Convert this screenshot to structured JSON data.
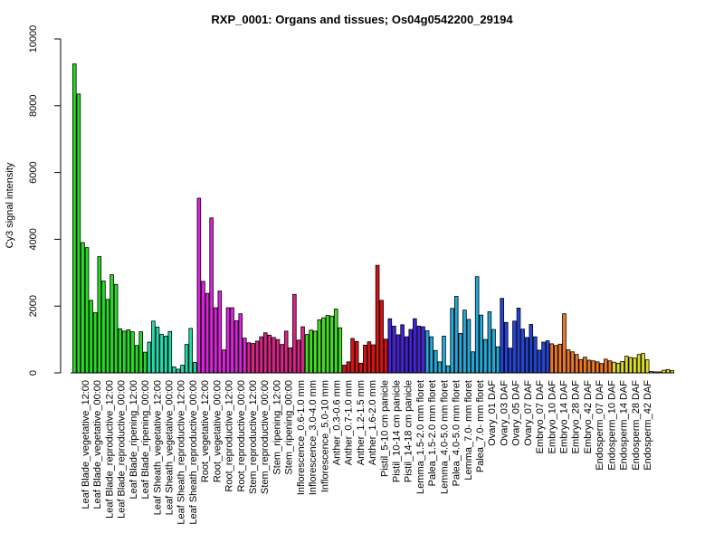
{
  "chart_data": {
    "type": "bar",
    "title": "RXP_0001: Organs and tissues; Os04g0542200_29194",
    "ylabel": "Cy3 signal intensity",
    "ylim": [
      0,
      10000
    ],
    "yticks": [
      0,
      2000,
      4000,
      6000,
      8000,
      10000
    ],
    "xlabels": [
      "Leaf Blade_vegetative_12:00",
      "Leaf Blade_vegetative_00:00",
      "Leaf Blade_reproductive_12:00",
      "Leaf Blade_reproductive_00:00",
      "Leaf Blade_ripening_12:00",
      "Leaf Blade_ripening_00:00",
      "Leaf Sheath_vegetative_12:00",
      "Leaf Sheath_vegetative_00:00",
      "Leaf Sheath_reproductive_12:00",
      "Leaf Sheath_reproductive_00:00",
      "Root_vegetative_12:00",
      "Root_vegetative_00:00",
      "Root_reproductive_12:00",
      "Root_reproductive_00:00",
      "Stem_reproductive_12:00",
      "Stem_reproductive_00:00",
      "Stem_ripening_12:00",
      "Stem_ripening_00:00",
      "Inflorescence_0.6-1.0 mm",
      "Inflorescence_3.0-4.0 mm",
      "Inflorescence_5.0-10 mm",
      "Anther_0.3-0.6 mm",
      "Anther_0.7-1.0 mm",
      "Anther_1.2-1.5 mm",
      "Anther_1.6-2.0 mm",
      "Pistil_5-10 cm panicle",
      "Pistil_10-14 cm panicle",
      "Pistil_14-18 cm panicle",
      "Lemma_1.5-2.0 mm floret",
      "Palea_1.5-2.0 mm floret",
      "Lemma_4.0-5.0 mm floret",
      "Palea_4.0-5.0 mm floret",
      "Lemma_7.0- mm floret",
      "Palea_7.0- mm floret",
      "Ovary_01 DAF",
      "Ovary_03 DAF",
      "Ovary_05 DAF",
      "Ovary_07 DAF",
      "Embryo_07 DAF",
      "Embryo_10 DAF",
      "Embryo_14 DAF",
      "Embryo_28 DAF",
      "Embryo_42 DAF",
      "Endosperm_07 DAF",
      "Endosperm_10 DAF",
      "Endosperm_14 DAF",
      "Endosperm_28 DAF",
      "Endosperm_42 DAF"
    ],
    "groups": [
      {
        "color": "#22dd22",
        "values": [
          9250,
          8350,
          3900,
          3750,
          2170,
          1800,
          3480,
          2750,
          2200,
          2940,
          2650,
          1320,
          1250,
          1290,
          1230,
          820,
          1230,
          620
        ]
      },
      {
        "color": "#22ddaa",
        "values": [
          920,
          1550,
          1370,
          1150,
          1100,
          1240,
          180,
          110,
          230,
          850,
          1330,
          310
        ]
      },
      {
        "color": "#dd22dd",
        "values": [
          5230,
          2740,
          2380,
          4640,
          1950,
          2450,
          690,
          1950,
          1950,
          1560,
          1770,
          1040
        ]
      },
      {
        "color": "#dd2288",
        "values": [
          900,
          880,
          950,
          1080,
          1200,
          1130,
          1060,
          1000,
          850,
          1250,
          750,
          2350,
          980,
          1380
        ]
      },
      {
        "color": "#44dd22",
        "values": [
          1150,
          1280,
          1250,
          1590,
          1650,
          1720,
          1700,
          1910,
          1350
        ]
      },
      {
        "color": "#dd1111",
        "values": [
          230,
          330,
          1030,
          940,
          290,
          830,
          930,
          840,
          3220,
          2170,
          1010
        ]
      },
      {
        "color": "#4422dd",
        "values": [
          1620,
          1400,
          1140,
          1440,
          1080,
          1300,
          1620,
          1400,
          1380
        ]
      },
      {
        "color": "#22aadd",
        "values": [
          1260,
          1080,
          670,
          330,
          1100,
          210,
          1930,
          2290,
          1180,
          1880,
          1600,
          630,
          2880,
          1730,
          1000,
          1830,
          1300,
          780
        ]
      },
      {
        "color": "#2244dd",
        "values": [
          2230,
          1510,
          740,
          1550,
          1940,
          1310,
          1060,
          1450,
          1080,
          680,
          920,
          960
        ]
      },
      {
        "color": "#ee7722",
        "values": [
          870,
          820,
          860,
          1770,
          690,
          630,
          550,
          400,
          470,
          380,
          360,
          330,
          280,
          410,
          360
        ]
      },
      {
        "color": "#dddd22",
        "values": [
          320,
          290,
          340,
          500,
          460,
          440,
          550,
          580,
          390,
          40,
          30,
          30,
          80,
          100,
          70
        ]
      }
    ]
  }
}
